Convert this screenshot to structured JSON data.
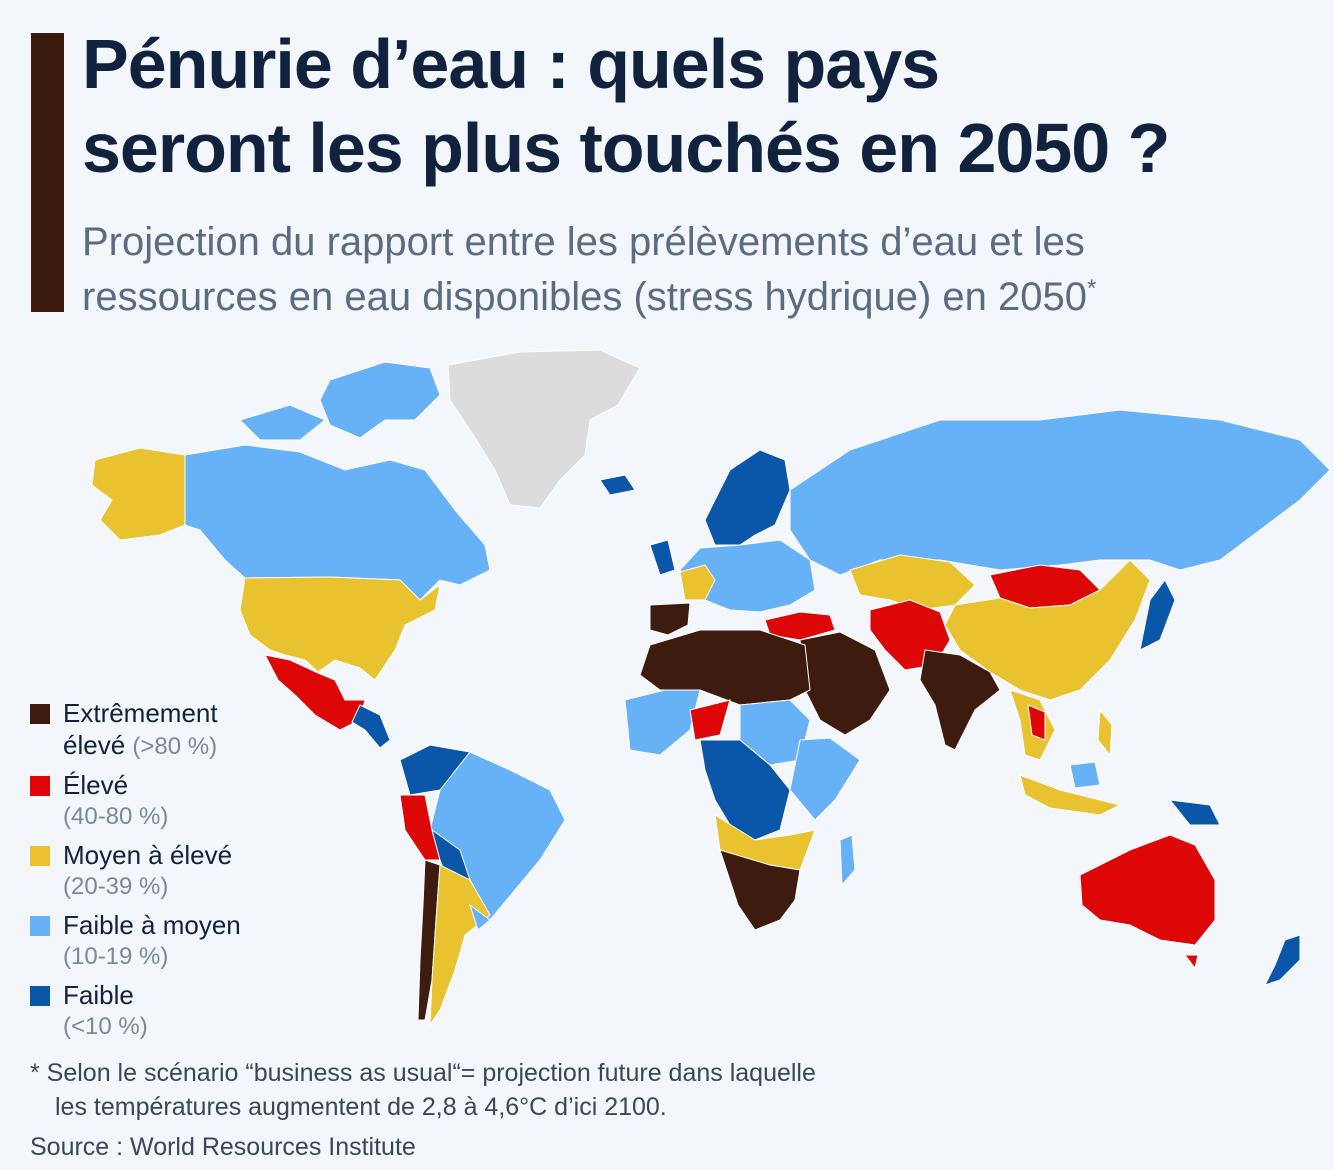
{
  "header": {
    "title_line1": "Pénurie d’eau : quels pays",
    "title_line2": "seront les plus touchés en 2050 ?",
    "subtitle_line1": "Projection du rapport entre les prélèvements d’eau et les",
    "subtitle_line2": "ressources en eau disponibles (stress hydrique) en 2050",
    "subtitle_marker": "*"
  },
  "colors": {
    "accent": "#3a1a0c",
    "extremely_high": "#3d1b0e",
    "high": "#dd0707",
    "medium_high": "#e8c22f",
    "low_medium": "#67b1f6",
    "low": "#0a56a8",
    "no_data": "#dcdcdc"
  },
  "legend": {
    "items": [
      {
        "label": "Extrêmement",
        "label2": "élevé",
        "range": "(>80 %)"
      },
      {
        "label": "Élevé",
        "range": "(40-80 %)"
      },
      {
        "label": "Moyen à élevé",
        "range": "(20-39 %)"
      },
      {
        "label": "Faible à moyen",
        "range": "(10-19 %)"
      },
      {
        "label": "Faible",
        "range": "(<10 %)"
      }
    ]
  },
  "footnote": {
    "line1": "* Selon le scénario “business as usual“= projection future dans laquelle",
    "line2": "les températures augmentent de 2,8 à 4,6°C d’ici 2100."
  },
  "source": "Source : World Resources Institute"
}
